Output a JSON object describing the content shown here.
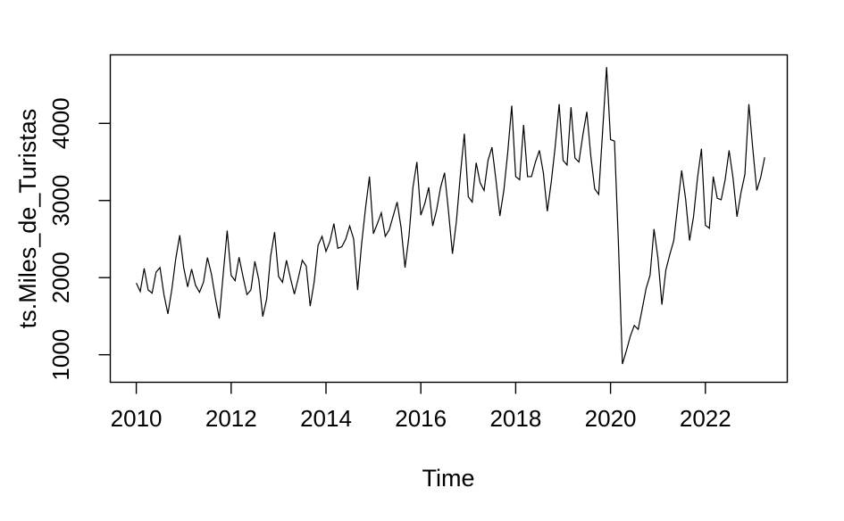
{
  "figure": {
    "background": "#ffffff",
    "line_color": "#000000",
    "box_color": "#000000"
  },
  "chart_data": {
    "type": "line",
    "title": "",
    "xlabel": "Time",
    "ylabel": "ts.Miles_de_Turistas",
    "legend": "none",
    "grid": false,
    "x_axis": {
      "ticks": [
        2010,
        2012,
        2014,
        2016,
        2018,
        2020,
        2022
      ],
      "tick_labels": [
        "2010",
        "2012",
        "2014",
        "2016",
        "2018",
        "2020",
        "2022"
      ],
      "range": [
        2009.47,
        2023.78
      ]
    },
    "y_axis": {
      "ticks": [
        1000,
        2000,
        3000,
        4000
      ],
      "tick_labels": [
        "1000",
        "2000",
        "3000",
        "4000"
      ],
      "range": [
        730,
        4890
      ]
    },
    "series": [
      {
        "name": "ts.Miles_de_Turistas",
        "start_year": 2010,
        "start_month": 1,
        "frequency": 12,
        "values": [
          1930,
          1820,
          2120,
          1840,
          1800,
          2070,
          2130,
          1780,
          1530,
          1850,
          2250,
          2550,
          2130,
          1880,
          2110,
          1900,
          1810,
          1940,
          2260,
          2050,
          1740,
          1470,
          2050,
          2610,
          2030,
          1960,
          2265,
          2015,
          1780,
          1840,
          2210,
          1975,
          1495,
          1725,
          2280,
          2590,
          2015,
          1940,
          2225,
          1995,
          1785,
          1995,
          2225,
          2150,
          1630,
          1940,
          2420,
          2535,
          2340,
          2470,
          2700,
          2380,
          2400,
          2500,
          2670,
          2500,
          1840,
          2430,
          2900,
          3310,
          2570,
          2700,
          2840,
          2535,
          2620,
          2800,
          2980,
          2650,
          2130,
          2540,
          3170,
          3500,
          2810,
          2960,
          3170,
          2670,
          2880,
          3170,
          3360,
          2860,
          2310,
          2730,
          3330,
          3865,
          3050,
          2980,
          3490,
          3230,
          3130,
          3520,
          3690,
          3270,
          2800,
          3130,
          3630,
          4230,
          3310,
          3270,
          3980,
          3310,
          3310,
          3500,
          3650,
          3360,
          2860,
          3240,
          3700,
          4250,
          3520,
          3460,
          4210,
          3550,
          3500,
          3850,
          4150,
          3580,
          3150,
          3080,
          3900,
          4730,
          3790,
          3770,
          2440,
          880,
          1050,
          1240,
          1380,
          1330,
          1590,
          1860,
          2030,
          2630,
          2250,
          1650,
          2100,
          2300,
          2480,
          2940,
          3390,
          3020,
          2480,
          2790,
          3290,
          3670,
          2680,
          2640,
          3310,
          3030,
          3010,
          3270,
          3650,
          3290,
          2790,
          3100,
          3340,
          4250,
          3670,
          3130,
          3300,
          3560
        ]
      }
    ]
  }
}
